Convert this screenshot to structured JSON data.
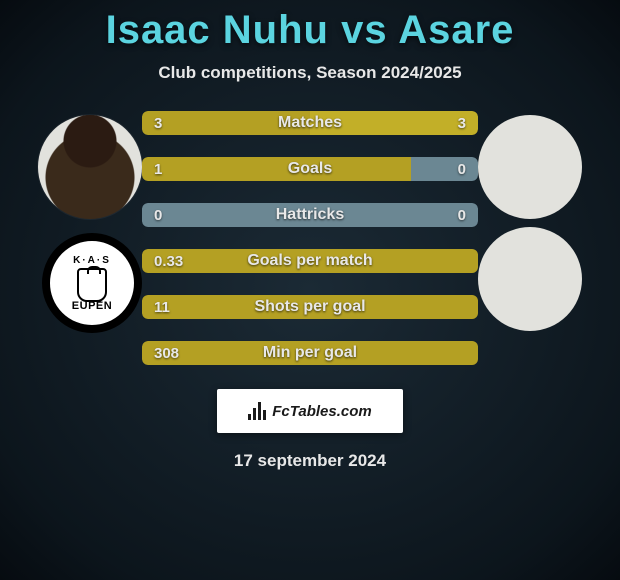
{
  "title": "Isaac Nuhu vs Asare",
  "subtitle": "Club competitions, Season 2024/2025",
  "date": "17 september 2024",
  "watermark_text": "FcTables.com",
  "colors": {
    "left_bar": "#b4a023",
    "right_bar": "#c2af28",
    "neutral_bar": "#6b8793",
    "title_color": "#5bd4e0"
  },
  "left_player": {
    "avatar_name": "player-face"
  },
  "right_player": {
    "avatar_name": "blank-avatar"
  },
  "left_club_logo": {
    "top_text": "K·A·S",
    "bottom_text": "EUPEN"
  },
  "rows": [
    {
      "label": "Matches",
      "left_value": "3",
      "right_value": "3",
      "left_pct": 50,
      "right_pct": 50,
      "left_color": "#b4a023",
      "right_color": "#c2af28"
    },
    {
      "label": "Goals",
      "left_value": "1",
      "right_value": "0",
      "left_pct": 80,
      "right_pct": 20,
      "left_color": "#b4a023",
      "right_color": "#6b8793"
    },
    {
      "label": "Hattricks",
      "left_value": "0",
      "right_value": "0",
      "left_pct": 50,
      "right_pct": 50,
      "left_color": "#6b8793",
      "right_color": "#6b8793"
    },
    {
      "label": "Goals per match",
      "left_value": "0.33",
      "right_value": "",
      "left_pct": 100,
      "right_pct": 0,
      "left_color": "#b4a023",
      "right_color": "#6b8793"
    },
    {
      "label": "Shots per goal",
      "left_value": "11",
      "right_value": "",
      "left_pct": 100,
      "right_pct": 0,
      "left_color": "#b4a023",
      "right_color": "#6b8793"
    },
    {
      "label": "Min per goal",
      "left_value": "308",
      "right_value": "",
      "left_pct": 100,
      "right_pct": 0,
      "left_color": "#b4a023",
      "right_color": "#6b8793"
    }
  ]
}
